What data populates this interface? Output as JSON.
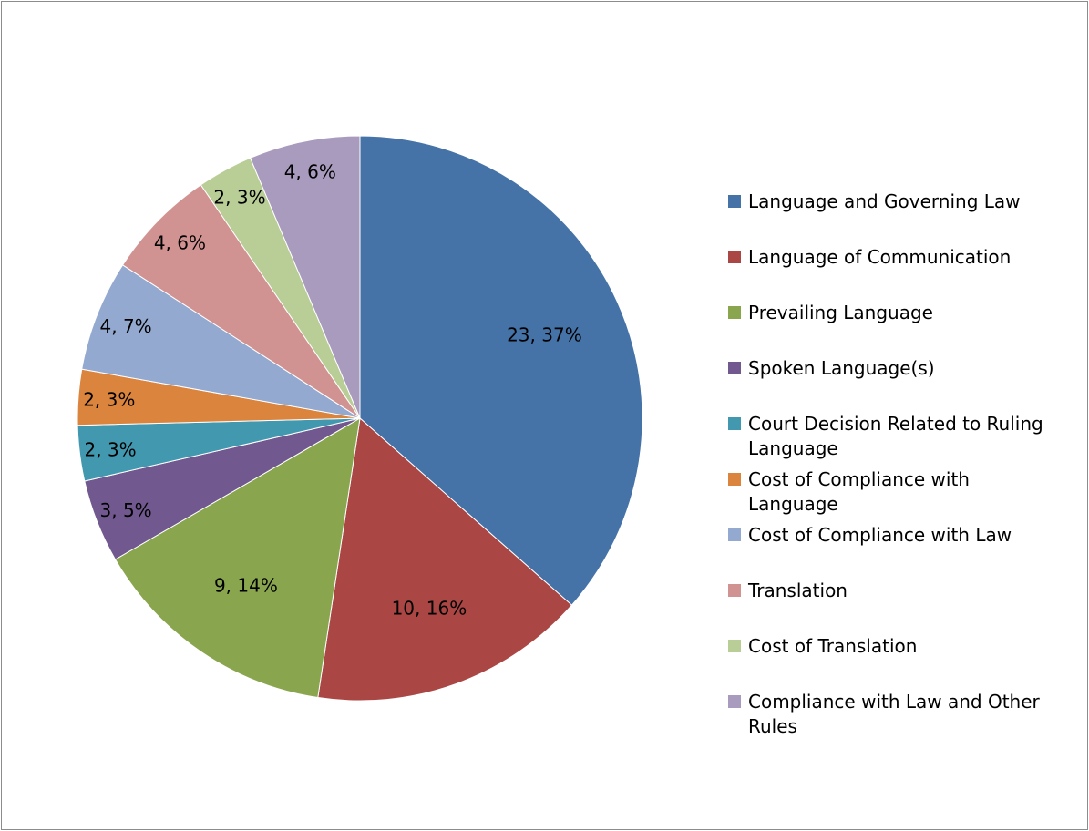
{
  "chart_data": {
    "type": "pie",
    "title": "",
    "legend_position": "right",
    "slices": [
      {
        "name": "Language and Governing Law",
        "value": 23,
        "percent": 37,
        "label": "23, 37%",
        "color": "#4572a7"
      },
      {
        "name": "Language of Communication",
        "value": 10,
        "percent": 16,
        "label": "10, 16%",
        "color": "#aa4643"
      },
      {
        "name": "Prevailing Language",
        "value": 9,
        "percent": 14,
        "label": "9, 14%",
        "color": "#89a54e"
      },
      {
        "name": "Spoken Language(s)",
        "value": 3,
        "percent": 5,
        "label": "3, 5%",
        "color": "#71588f"
      },
      {
        "name": "Court Decision Related to Ruling Language",
        "value": 2,
        "percent": 3,
        "label": "2, 3%",
        "color": "#4198af"
      },
      {
        "name": "Cost of Compliance with Language",
        "value": 2,
        "percent": 3,
        "label": "2, 3%",
        "color": "#db843d"
      },
      {
        "name": "Cost of Compliance with Law",
        "value": 4,
        "percent": 7,
        "label": "4, 7%",
        "color": "#93a9cf"
      },
      {
        "name": "Translation",
        "value": 4,
        "percent": 6,
        "label": "4, 6%",
        "color": "#d19392"
      },
      {
        "name": "Cost of Translation",
        "value": 2,
        "percent": 3,
        "label": "2, 3%",
        "color": "#b9cd96"
      },
      {
        "name": "Compliance with Law and Other Rules",
        "value": 4,
        "percent": 6,
        "label": "4, 6%",
        "color": "#a99bbd"
      }
    ]
  }
}
